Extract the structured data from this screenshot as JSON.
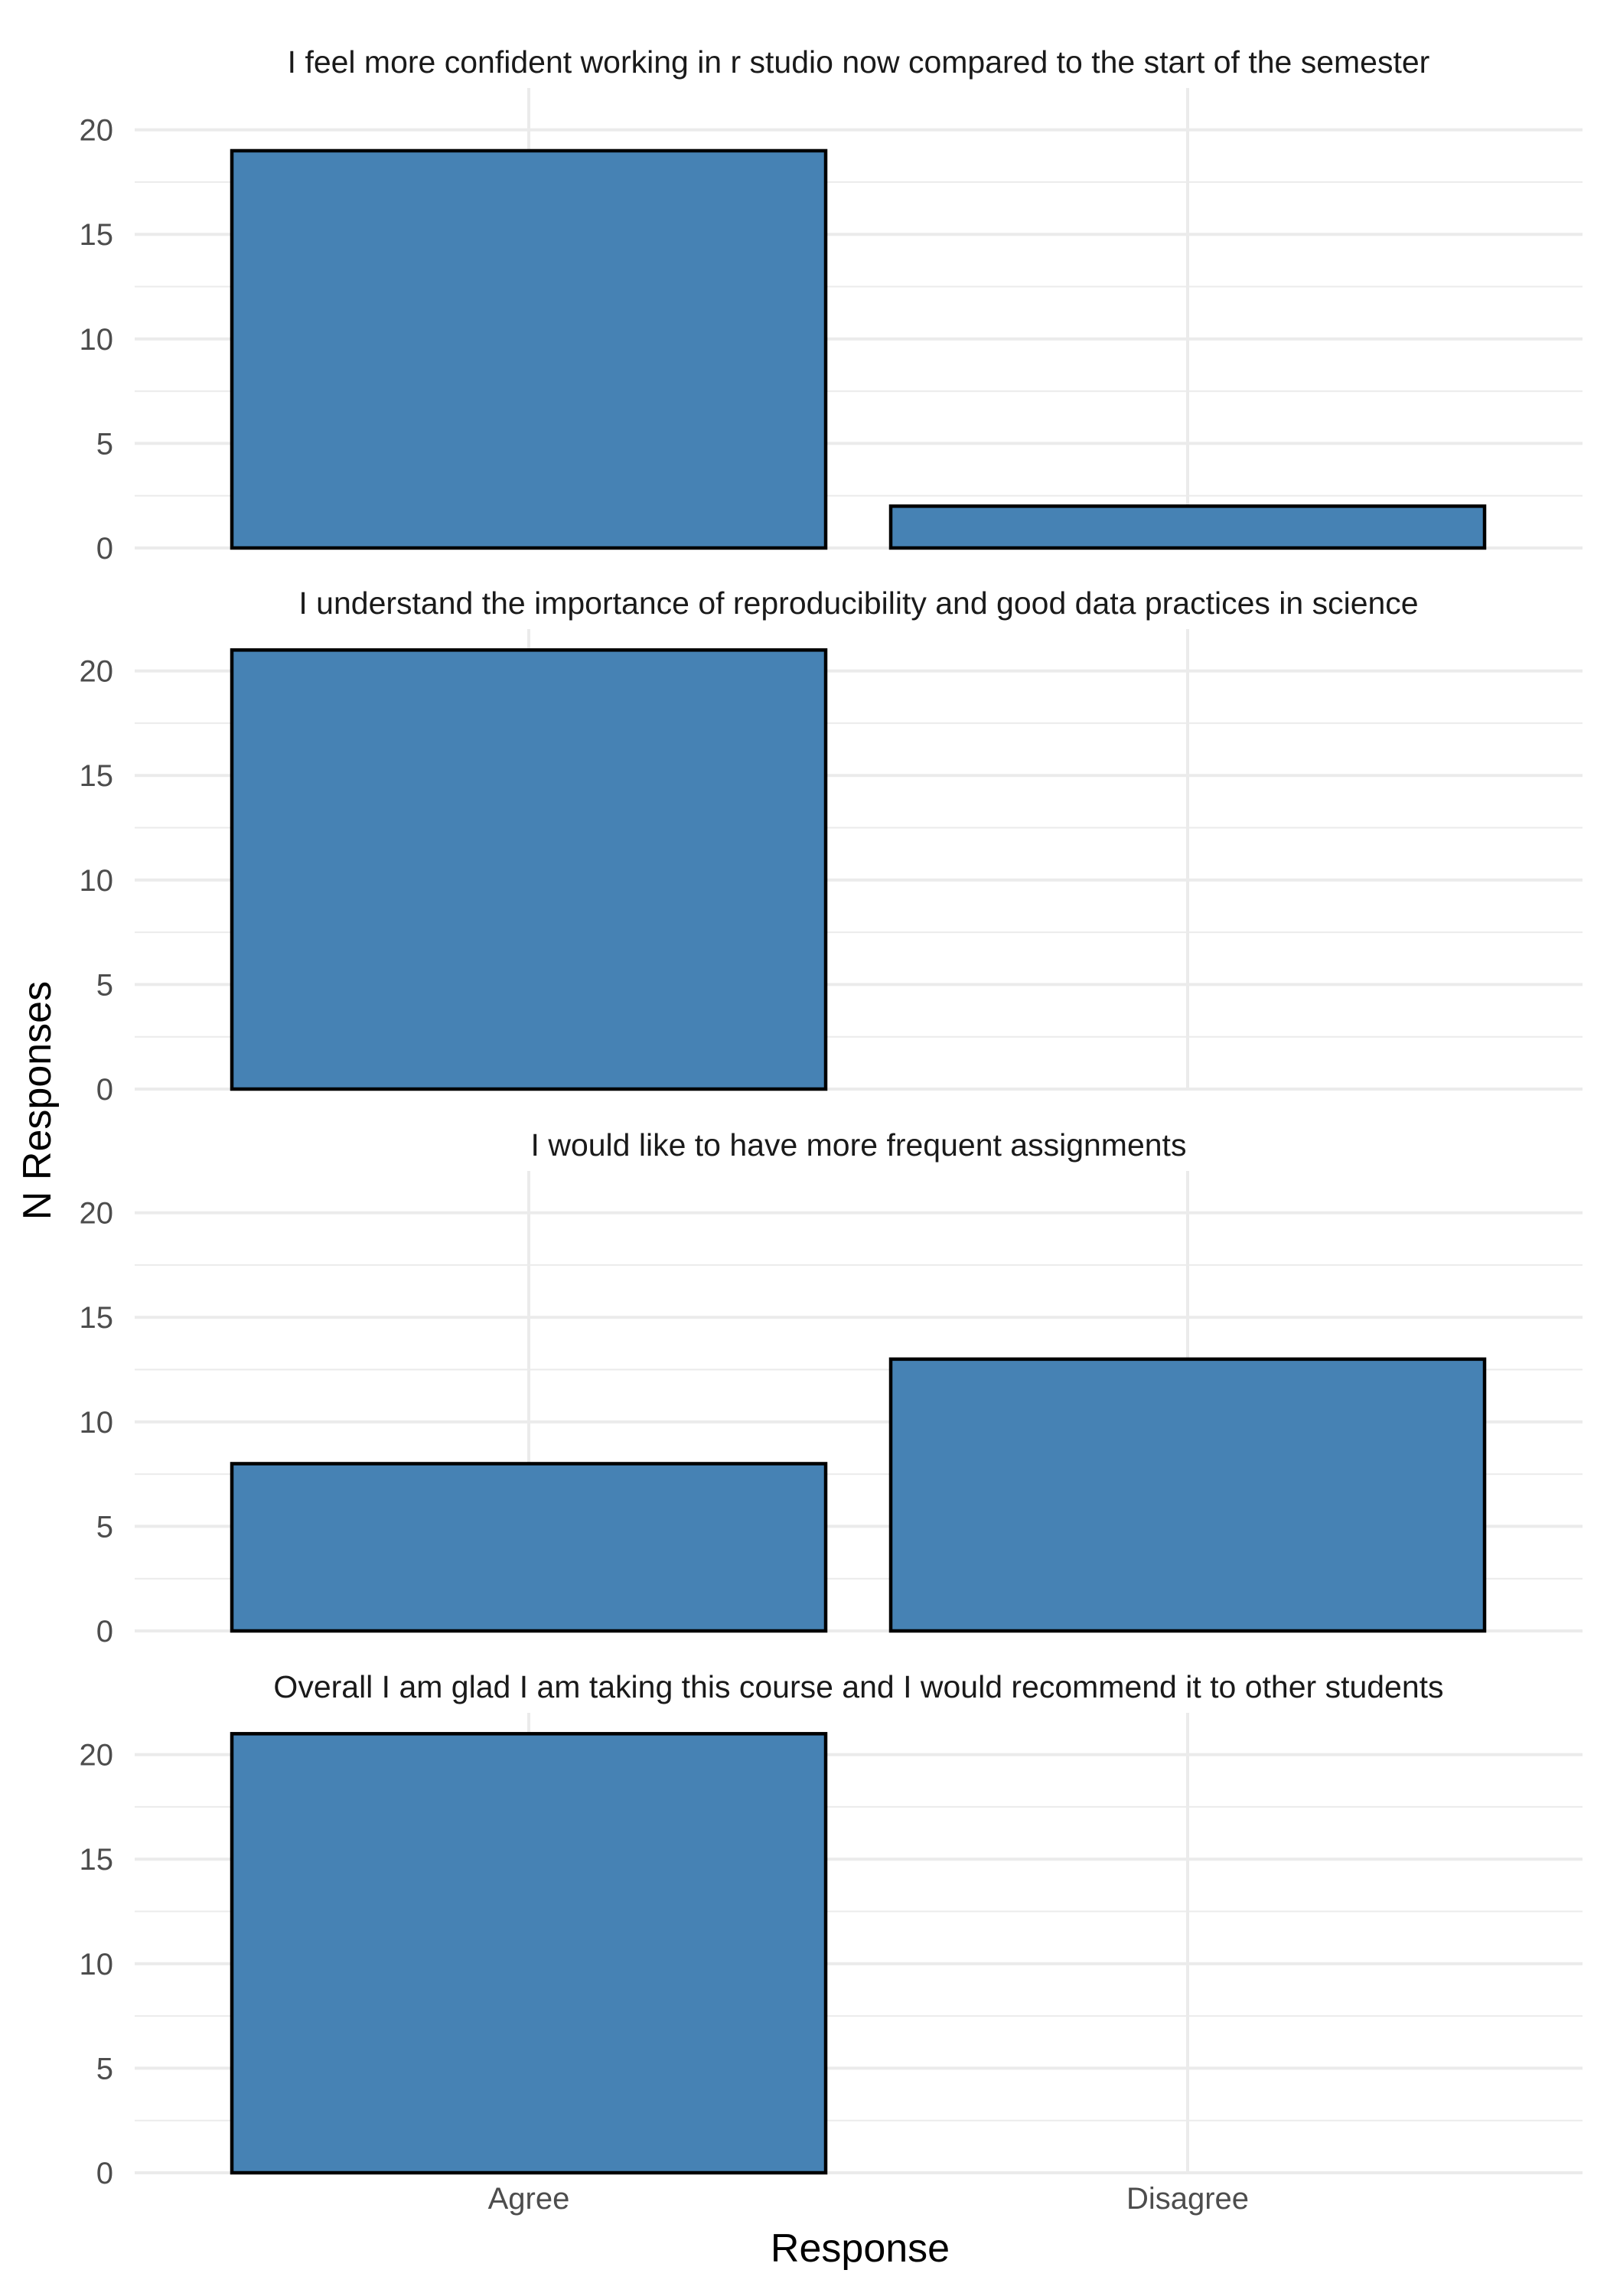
{
  "chart_data": {
    "type": "bar",
    "layout": "faceted, one panel per statement, shared x-axis",
    "xlabel": "Response",
    "ylabel": "N Responses",
    "categories": [
      "Agree",
      "Disagree"
    ],
    "ylim": [
      0,
      22
    ],
    "yticks": [
      0,
      5,
      10,
      15,
      20
    ],
    "grid": true,
    "bar_color": "#4682B4",
    "bar_outline": "#000000",
    "panels": [
      {
        "title": "I feel more confident working in r studio now compared to the start of the semester",
        "values": [
          19,
          2
        ]
      },
      {
        "title": "I understand the importance of reproducibility and good data practices in science",
        "values": [
          21,
          0
        ]
      },
      {
        "title": "I would like to have more frequent assignments",
        "values": [
          8,
          13
        ]
      },
      {
        "title": "Overall I am glad I am taking this course and I would recommend it to other students",
        "values": [
          21,
          0
        ]
      }
    ]
  }
}
